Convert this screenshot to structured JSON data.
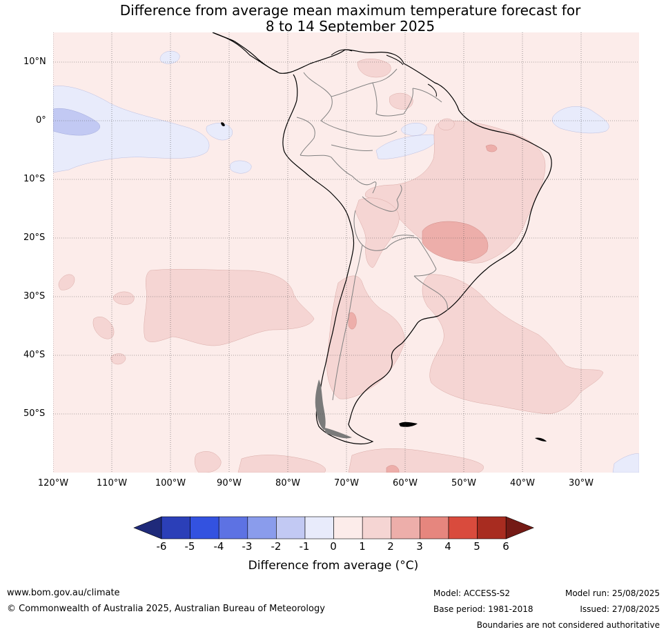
{
  "title": {
    "line1": "Difference from average mean maximum temperature forecast for",
    "line2": "8 to 14 September 2025"
  },
  "axes": {
    "latitude_labels": [
      "10°N",
      "0°",
      "10°S",
      "20°S",
      "30°S",
      "40°S",
      "50°S"
    ],
    "longitude_labels": [
      "120°W",
      "110°W",
      "100°W",
      "90°W",
      "80°W",
      "70°W",
      "60°W",
      "50°W",
      "40°W",
      "30°W"
    ],
    "lat_range": [
      -60,
      15
    ],
    "lon_range": [
      -120,
      -20
    ],
    "grid": "dotted"
  },
  "colorbar": {
    "ticks": [
      "-6",
      "-5",
      "-4",
      "-3",
      "-2",
      "-1",
      "0",
      "1",
      "2",
      "3",
      "4",
      "5",
      "6"
    ],
    "colors": [
      "#1f2a7a",
      "#2b3fb8",
      "#3352e0",
      "#5d72e3",
      "#8a9cec",
      "#c2c9f3",
      "#e8ebfb",
      "#fcecea",
      "#f5d5d3",
      "#edaeaa",
      "#e6867e",
      "#d94b3d",
      "#a82c20",
      "#741a15"
    ],
    "label": "Difference from average (°C)"
  },
  "regions": {
    "background_anomaly": "0 to 1",
    "warm_anomaly_main": "1 to 2",
    "warm_anomaly_peak": "2 to 3",
    "cool_anomaly": "-1 to 0",
    "cool_anomaly_core": "-2 to -1"
  },
  "footer": {
    "website": "www.bom.gov.au/climate",
    "copyright": "© Commonwealth of Australia 2025, Australian Bureau of Meteorology",
    "model": "Model: ACCESS-S2",
    "base_period": "Base period: 1981-2018",
    "model_run": "Model run: 25/08/2025",
    "issued": "Issued: 27/08/2025",
    "disclaimer": "Boundaries are not considered authoritative"
  }
}
